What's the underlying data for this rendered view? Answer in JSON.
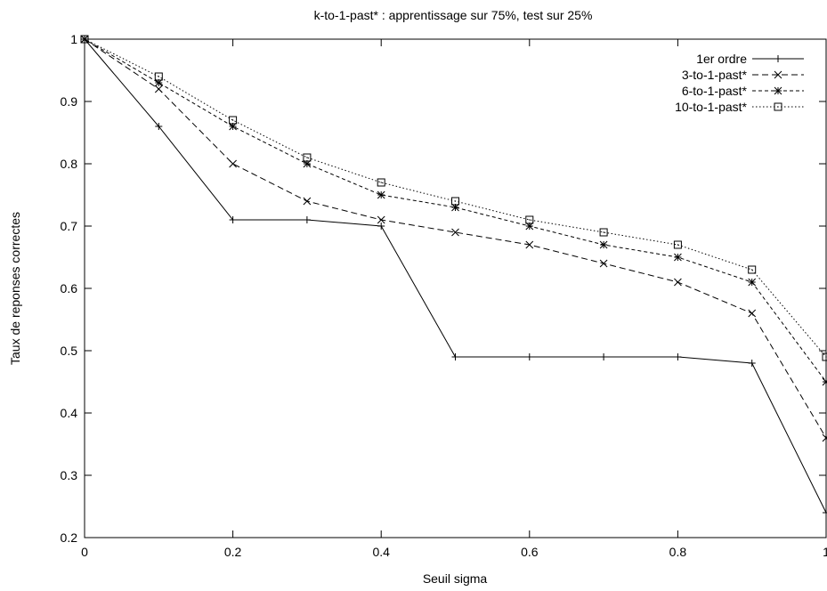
{
  "chart_data": {
    "type": "line",
    "title": "k-to-1-past* : apprentissage sur 75%, test sur 25%",
    "xlabel": "Seuil sigma",
    "ylabel": "Taux de reponses correctes",
    "xlim": [
      0,
      1
    ],
    "ylim": [
      0.2,
      1
    ],
    "xticks": [
      {
        "value": 0,
        "label": "0"
      },
      {
        "value": 0.2,
        "label": "0.2"
      },
      {
        "value": 0.4,
        "label": "0.4"
      },
      {
        "value": 0.6,
        "label": "0.6"
      },
      {
        "value": 0.8,
        "label": "0.8"
      },
      {
        "value": 1,
        "label": "1"
      }
    ],
    "yticks": [
      {
        "value": 0.2,
        "label": "0.2"
      },
      {
        "value": 0.3,
        "label": "0.3"
      },
      {
        "value": 0.4,
        "label": "0.4"
      },
      {
        "value": 0.5,
        "label": "0.5"
      },
      {
        "value": 0.6,
        "label": "0.6"
      },
      {
        "value": 0.7,
        "label": "0.7"
      },
      {
        "value": 0.8,
        "label": "0.8"
      },
      {
        "value": 0.9,
        "label": "0.9"
      },
      {
        "value": 1,
        "label": "1"
      }
    ],
    "grid": false,
    "legend_position": "top-right",
    "x": [
      0,
      0.1,
      0.2,
      0.3,
      0.4,
      0.5,
      0.6,
      0.7,
      0.8,
      0.9,
      1.0
    ],
    "series": [
      {
        "name": "1er ordre",
        "marker": "plus",
        "dash": "solid",
        "values": [
          1.0,
          0.86,
          0.71,
          0.71,
          0.7,
          0.49,
          0.49,
          0.49,
          0.49,
          0.48,
          0.24
        ]
      },
      {
        "name": "3-to-1-past*",
        "marker": "cross",
        "dash": "dashed",
        "values": [
          1.0,
          0.92,
          0.8,
          0.74,
          0.71,
          0.69,
          0.67,
          0.64,
          0.61,
          0.56,
          0.36
        ]
      },
      {
        "name": "6-to-1-past*",
        "marker": "asterisk",
        "dash": "short-dashed",
        "values": [
          1.0,
          0.93,
          0.86,
          0.8,
          0.75,
          0.73,
          0.7,
          0.67,
          0.65,
          0.61,
          0.45
        ]
      },
      {
        "name": "10-to-1-past*",
        "marker": "square",
        "dash": "dotted",
        "values": [
          1.0,
          0.94,
          0.87,
          0.81,
          0.77,
          0.74,
          0.71,
          0.69,
          0.67,
          0.63,
          0.49
        ]
      }
    ]
  }
}
